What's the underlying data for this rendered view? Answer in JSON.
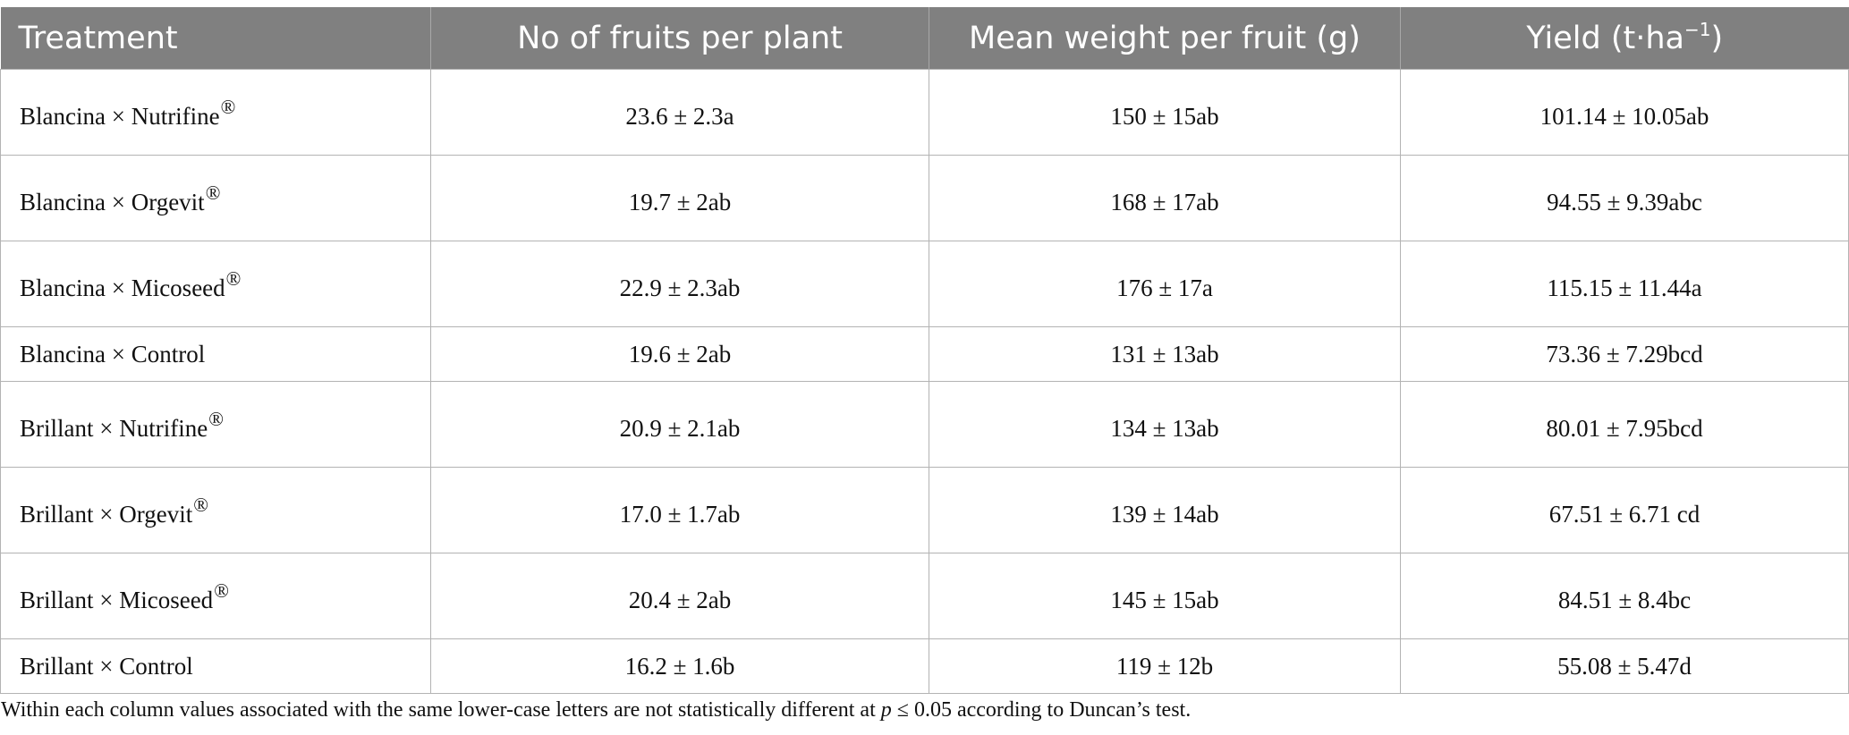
{
  "table": {
    "headers": [
      {
        "label": "Treatment",
        "sup": ""
      },
      {
        "label": "No of fruits per plant",
        "sup": ""
      },
      {
        "label": "Mean weight per fruit (g)",
        "sup": ""
      },
      {
        "label": "Yield (t·ha",
        "sup": "−1",
        "suffix": ")"
      }
    ],
    "rows": [
      {
        "treatment": "Blancina × Nutrifine",
        "mark": "®",
        "fruits": "23.6 ± 2.3a",
        "weight": "150 ± 15ab",
        "yield": "101.14 ± 10.05ab"
      },
      {
        "treatment": "Blancina × Orgevit",
        "mark": "®",
        "fruits": "19.7 ± 2ab",
        "weight": "168 ± 17ab",
        "yield": "94.55 ± 9.39abc"
      },
      {
        "treatment": "Blancina × Micoseed",
        "mark": "®",
        "fruits": "22.9 ± 2.3ab",
        "weight": "176 ± 17a",
        "yield": "115.15 ± 11.44a"
      },
      {
        "treatment": "Blancina × Control",
        "mark": "",
        "fruits": "19.6 ± 2ab",
        "weight": "131 ± 13ab",
        "yield": "73.36 ± 7.29bcd"
      },
      {
        "treatment": "Brillant × Nutrifine",
        "mark": "®",
        "fruits": "20.9 ± 2.1ab",
        "weight": "134 ± 13ab",
        "yield": "80.01 ± 7.95bcd"
      },
      {
        "treatment": "Brillant × Orgevit",
        "mark": "®",
        "fruits": "17.0 ± 1.7ab",
        "weight": "139 ± 14ab",
        "yield": "67.51 ± 6.71 cd"
      },
      {
        "treatment": "Brillant × Micoseed",
        "mark": "®",
        "fruits": "20.4 ± 2ab",
        "weight": "145 ± 15ab",
        "yield": "84.51 ± 8.4bc"
      },
      {
        "treatment": "Brillant × Control",
        "mark": "",
        "fruits": "16.2 ± 1.6b",
        "weight": "119 ± 12b",
        "yield": "55.08 ± 5.47d"
      }
    ]
  },
  "footnote": {
    "before": "Within each column values associated with the same lower-case letters are not statistically different at ",
    "p": "p",
    "after": " ≤ 0.05 according to Duncan’s test."
  },
  "colors": {
    "header_bg": "#808080",
    "header_text": "#ffffff",
    "grid": "#b3b3b3"
  }
}
